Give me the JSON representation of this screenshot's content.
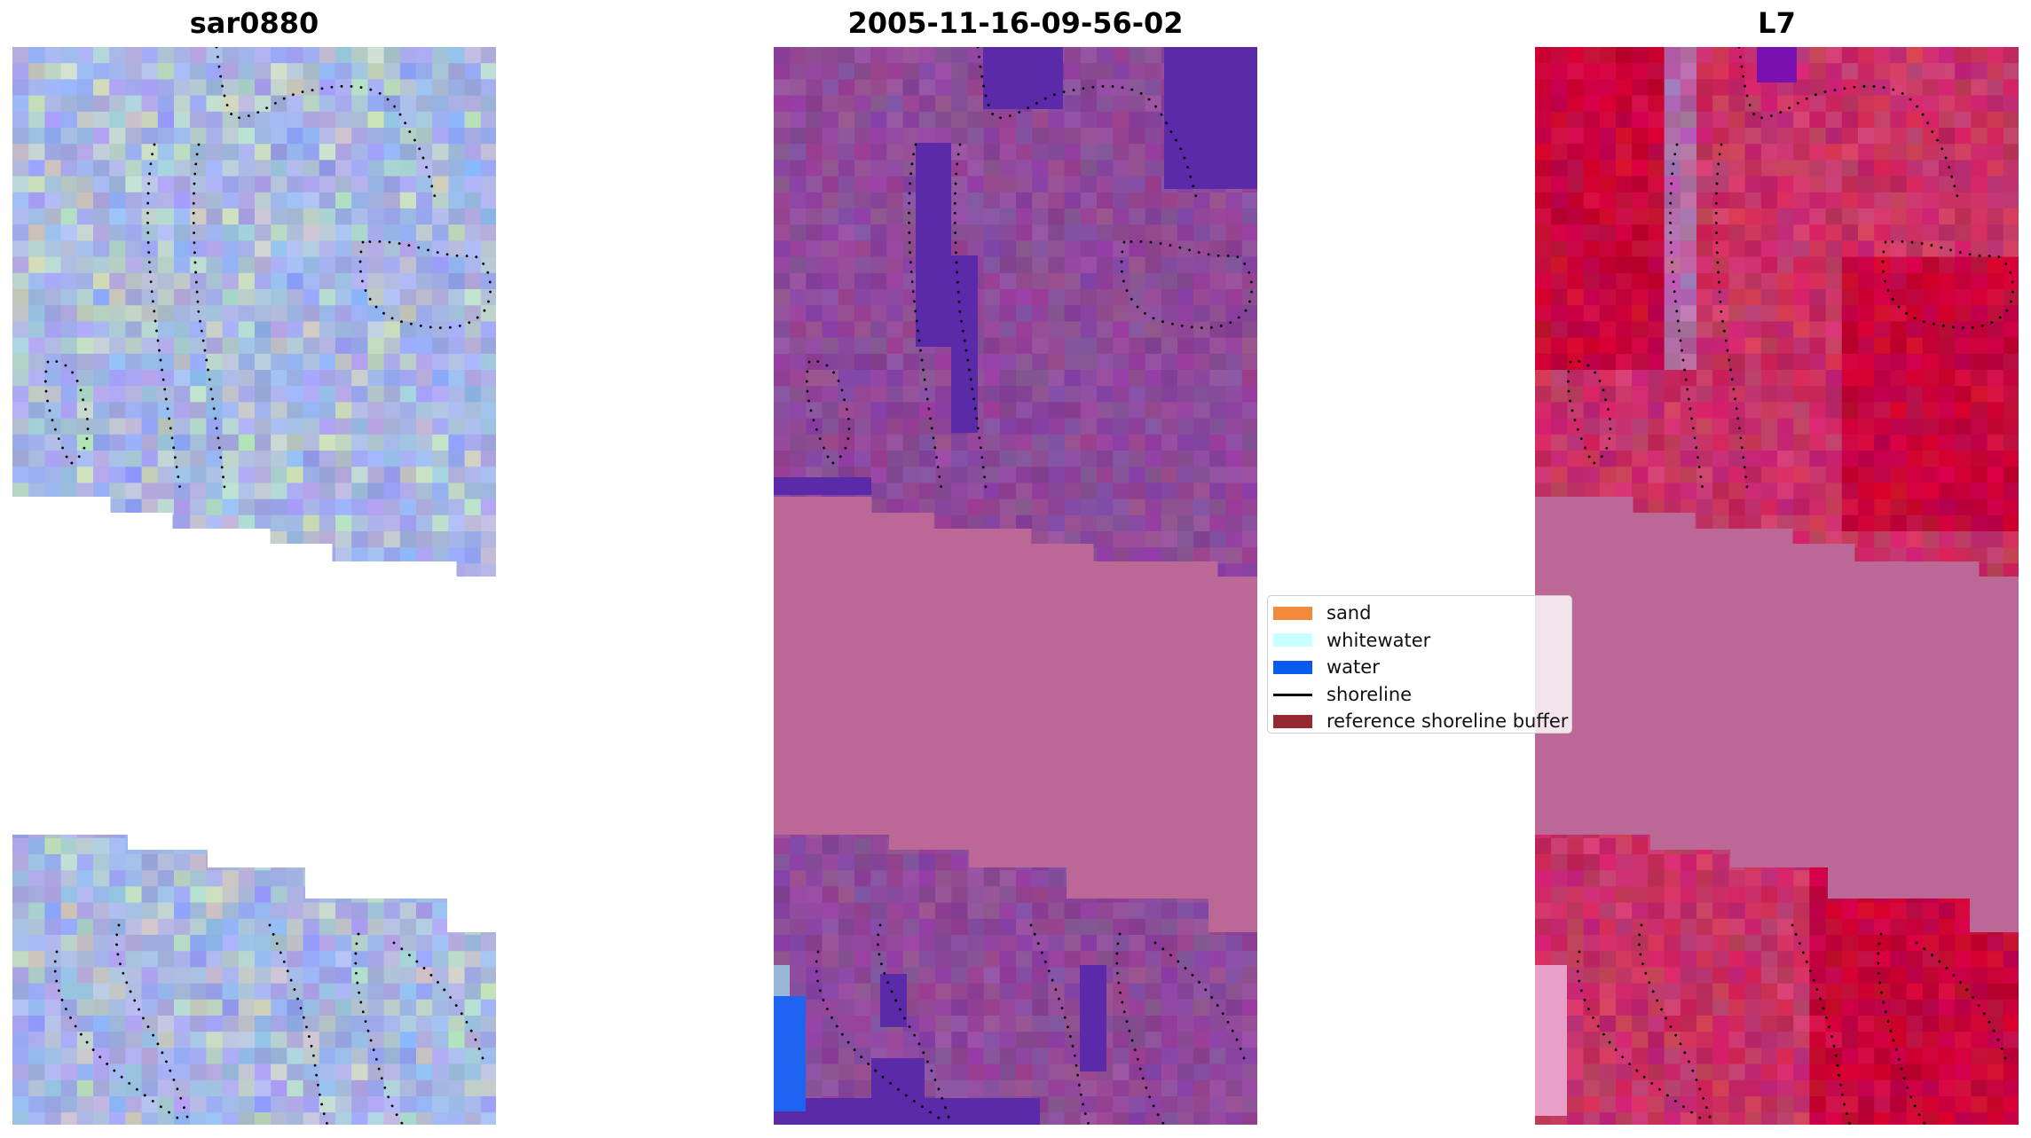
{
  "panels": [
    {
      "title": "sar0880",
      "style": "rgb",
      "base_color": "#a6b4e6",
      "alt_colors": [
        "#b4c8d4",
        "#9aa8ee",
        "#c2d2c6"
      ]
    },
    {
      "title": "2005-11-16-09-56-02",
      "style": "classified",
      "base_color": "#8e4a9a",
      "water_color": "#5a2aa8",
      "buffer_color": "#bc6896"
    },
    {
      "title": "L7",
      "style": "index",
      "base_color": "#c83266",
      "high_color": "#c8003c",
      "low_color": "#b06aa8",
      "buffer_color": "#bc6896"
    }
  ],
  "legend": {
    "items": [
      {
        "label": "sand",
        "color": "#f28a3c",
        "kind": "patch"
      },
      {
        "label": "whitewater",
        "color": "#c8ffff",
        "kind": "patch"
      },
      {
        "label": "water",
        "color": "#0a5af0",
        "kind": "patch"
      },
      {
        "label": "shoreline",
        "color": "#000000",
        "kind": "line"
      },
      {
        "label": "reference shoreline buffer",
        "color": "#962832",
        "kind": "patch"
      }
    ]
  }
}
